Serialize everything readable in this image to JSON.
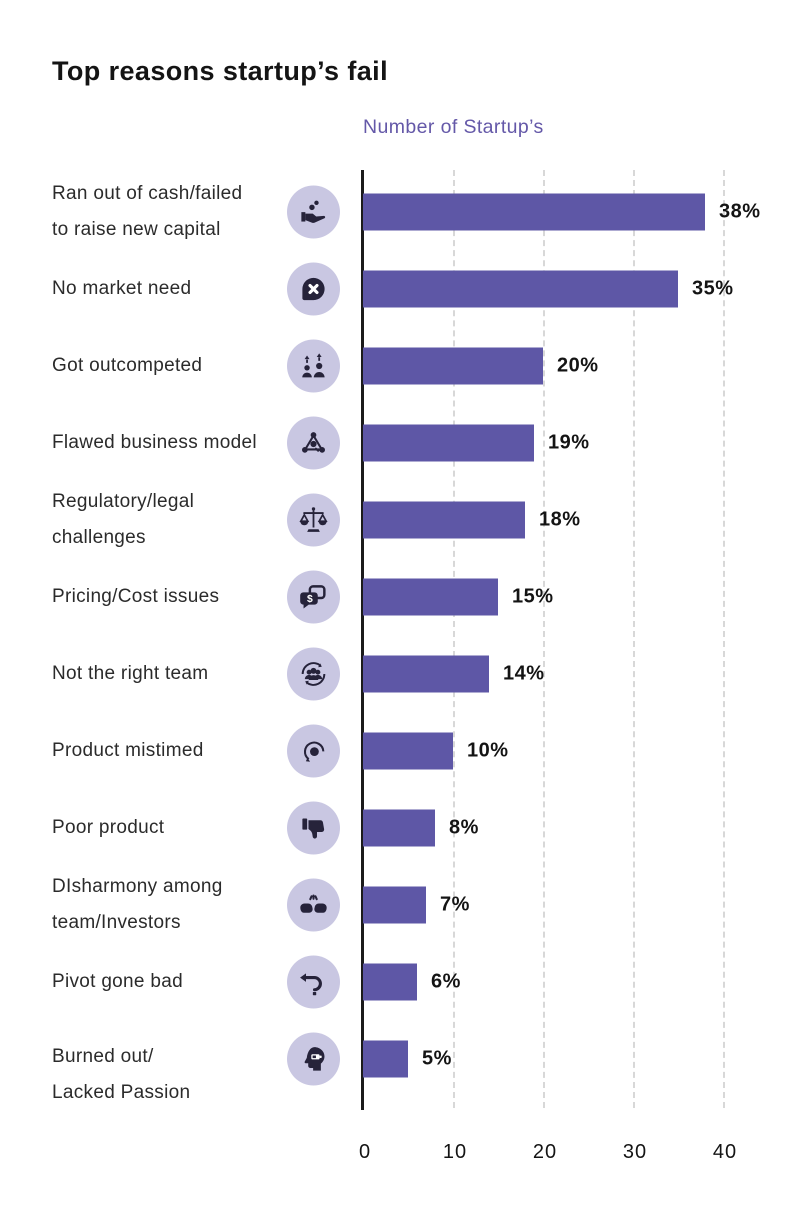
{
  "title": "Top reasons startup’s fail",
  "axis_title": "Number of Startup’s",
  "colors": {
    "bar": "#5e57a6",
    "icon_bg": "#c9c7e2",
    "icon_fg": "#26233a",
    "accent_text": "#6458a8",
    "axis": "#1b1b1b",
    "grid": "#d8d8d8",
    "text": "#141414",
    "label": "#2b2b2b"
  },
  "chart_data": {
    "type": "bar",
    "orientation": "horizontal",
    "title": "Top reasons startup’s fail",
    "xlabel": "Number of Startup’s",
    "xlim": [
      0,
      44
    ],
    "xticks": [
      0,
      10,
      20,
      30,
      40
    ],
    "grid": "vertical-dashed",
    "legend": false,
    "categories": [
      "Ran out of cash/failed to raise new capital",
      "No market need",
      "Got outcompeted",
      "Flawed business model",
      "Regulatory/legal challenges",
      "Pricing/Cost issues",
      "Not the right team",
      "Product mistimed",
      "Poor product",
      "DIsharmony among team/Investors",
      "Pivot gone bad",
      "Burned out/Lacked Passion"
    ],
    "values": [
      38,
      35,
      20,
      19,
      18,
      15,
      14,
      10,
      8,
      7,
      6,
      5
    ],
    "value_labels": [
      "38%",
      "35%",
      "20%",
      "19%",
      "18%",
      "15%",
      "14%",
      "10%",
      "8%",
      "7%",
      "6%",
      "5%"
    ]
  },
  "rows": [
    {
      "label_lines": [
        "Ran out of cash/failed",
        "to raise new capital"
      ],
      "icon": "cash",
      "value": 38,
      "pct": "38%"
    },
    {
      "label_lines": [
        "No market need"
      ],
      "icon": "no-market",
      "value": 35,
      "pct": "35%"
    },
    {
      "label_lines": [
        "Got outcompeted"
      ],
      "icon": "outcompeted",
      "value": 20,
      "pct": "20%"
    },
    {
      "label_lines": [
        "Flawed business model"
      ],
      "icon": "business-model",
      "value": 19,
      "pct": "19%"
    },
    {
      "label_lines": [
        "Regulatory/legal",
        "challenges"
      ],
      "icon": "legal",
      "value": 18,
      "pct": "18%"
    },
    {
      "label_lines": [
        "Pricing/Cost issues"
      ],
      "icon": "pricing",
      "value": 15,
      "pct": "15%"
    },
    {
      "label_lines": [
        "Not the right team"
      ],
      "icon": "team",
      "value": 14,
      "pct": "14%"
    },
    {
      "label_lines": [
        "Product mistimed"
      ],
      "icon": "mistimed",
      "value": 10,
      "pct": "10%"
    },
    {
      "label_lines": [
        "Poor product"
      ],
      "icon": "poor-product",
      "value": 8,
      "pct": "8%"
    },
    {
      "label_lines": [
        "DIsharmony among",
        "team/Investors"
      ],
      "icon": "disharmony",
      "value": 7,
      "pct": "7%"
    },
    {
      "label_lines": [
        "Pivot gone bad"
      ],
      "icon": "pivot",
      "value": 6,
      "pct": "6%"
    },
    {
      "label_lines": [
        "Burned out/",
        "Lacked Passion"
      ],
      "icon": "burnout",
      "value": 5,
      "pct": "5%"
    }
  ],
  "x_axis": {
    "ticks": [
      "0",
      "10",
      "20",
      "30",
      "40"
    ]
  }
}
